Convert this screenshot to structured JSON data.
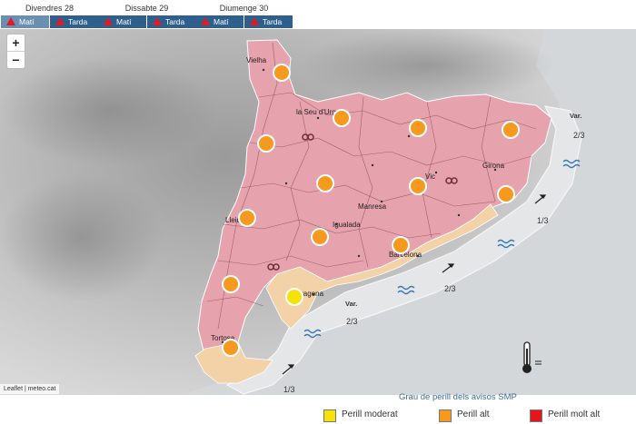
{
  "days": [
    {
      "label": "Divendres 28",
      "slots": [
        "Matí",
        "Tarda"
      ]
    },
    {
      "label": "Dissabte 29",
      "slots": [
        "Matí",
        "Tarda"
      ]
    },
    {
      "label": "Diumenge 30",
      "slots": [
        "Matí",
        "Tarda"
      ]
    }
  ],
  "zoom": {
    "in": "+",
    "out": "−"
  },
  "cities": [
    "Vielha",
    "la Seu d'Urgell",
    "Vic",
    "Girona",
    "Manresa",
    "Lleida",
    "Igualada",
    "Barcelona",
    "Tarragona",
    "Tortosa"
  ],
  "sea": {
    "labels": [
      "Var.",
      "2/3",
      "1/3",
      "2/3",
      "Var.",
      "2/3",
      "1/3"
    ]
  },
  "attribution": "Leaflet | meteo.cat",
  "legend": {
    "title": "Grau de perill dels avisos SMP",
    "items": [
      {
        "label": "Perill moderat",
        "color": "#f5e20a"
      },
      {
        "label": "Perill alt",
        "color": "#f59a1f"
      },
      {
        "label": "Perill molt alt",
        "color": "#e3161e"
      }
    ]
  },
  "colors": {
    "region_high": "#e6a2ad",
    "region_moderate": "#f2d2a6",
    "marker": "#f59a1f",
    "accent": "#2f5f8c"
  },
  "icons": [
    "warning-triangle-icon",
    "hazard-marker-icon",
    "wave-icon",
    "wind-arrow-icon",
    "thermometer-icon"
  ]
}
